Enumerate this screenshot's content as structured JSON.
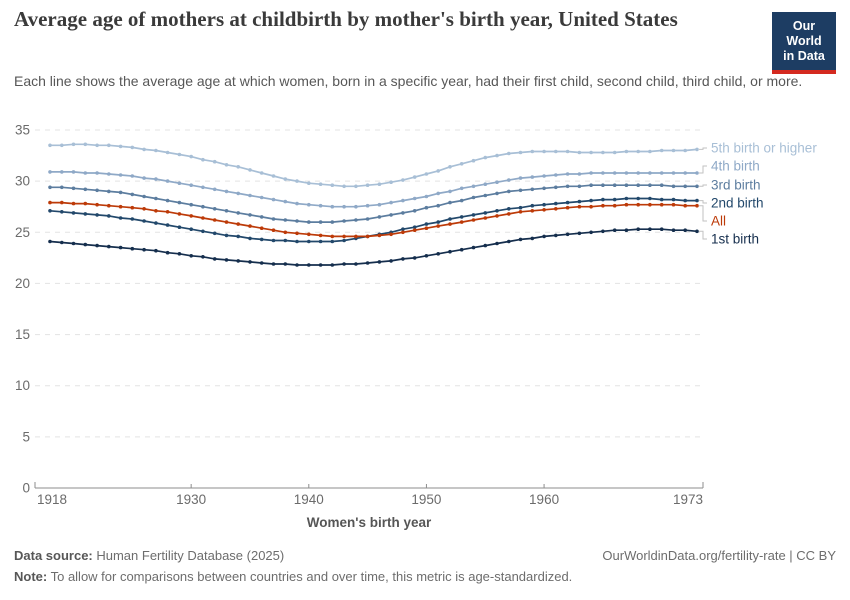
{
  "header": {
    "title": "Average age of mothers at childbirth by mother's birth year, United States",
    "subtitle": "Each line shows the average age at which women, born in a specific year, had their first child, second child, third child, or more.",
    "logo": {
      "line1": "Our World",
      "line2": "in Data",
      "bg": "#1d3d63",
      "accent": "#d42a20"
    }
  },
  "chart_data": {
    "type": "line",
    "title": "Average age of mothers at childbirth by mother's birth year, United States",
    "xlabel": "Women's birth year",
    "ylabel": "",
    "xlim": [
      1918,
      1973
    ],
    "ylim": [
      0,
      35
    ],
    "yticks": [
      0,
      5,
      10,
      15,
      20,
      25,
      30,
      35
    ],
    "xticks": [
      1918,
      1930,
      1940,
      1950,
      1960,
      1973
    ],
    "grid": "horizontal-dashed",
    "legend_position": "right",
    "x": [
      1918,
      1919,
      1920,
      1921,
      1922,
      1923,
      1924,
      1925,
      1926,
      1927,
      1928,
      1929,
      1930,
      1931,
      1932,
      1933,
      1934,
      1935,
      1936,
      1937,
      1938,
      1939,
      1940,
      1941,
      1942,
      1943,
      1944,
      1945,
      1946,
      1947,
      1948,
      1949,
      1950,
      1951,
      1952,
      1953,
      1954,
      1955,
      1956,
      1957,
      1958,
      1959,
      1960,
      1961,
      1962,
      1963,
      1964,
      1965,
      1966,
      1967,
      1968,
      1969,
      1970,
      1971,
      1972,
      1973
    ],
    "series": [
      {
        "name": "5th birth or higher",
        "color": "#a8bfd6",
        "values": [
          33.5,
          33.5,
          33.6,
          33.6,
          33.5,
          33.5,
          33.4,
          33.3,
          33.1,
          33.0,
          32.8,
          32.6,
          32.4,
          32.1,
          31.9,
          31.6,
          31.4,
          31.1,
          30.8,
          30.5,
          30.2,
          30.0,
          29.8,
          29.7,
          29.6,
          29.5,
          29.5,
          29.6,
          29.7,
          29.9,
          30.1,
          30.4,
          30.7,
          31.0,
          31.4,
          31.7,
          32.0,
          32.3,
          32.5,
          32.7,
          32.8,
          32.9,
          32.9,
          32.9,
          32.9,
          32.8,
          32.8,
          32.8,
          32.8,
          32.9,
          32.9,
          32.9,
          33.0,
          33.0,
          33.0,
          33.1
        ]
      },
      {
        "name": "4th birth",
        "color": "#8fa9c7",
        "values": [
          30.9,
          30.9,
          30.9,
          30.8,
          30.8,
          30.7,
          30.6,
          30.5,
          30.3,
          30.2,
          30.0,
          29.8,
          29.6,
          29.4,
          29.2,
          29.0,
          28.8,
          28.6,
          28.4,
          28.2,
          28.0,
          27.8,
          27.7,
          27.6,
          27.5,
          27.5,
          27.5,
          27.6,
          27.7,
          27.9,
          28.1,
          28.3,
          28.5,
          28.8,
          29.0,
          29.3,
          29.5,
          29.7,
          29.9,
          30.1,
          30.3,
          30.4,
          30.5,
          30.6,
          30.7,
          30.7,
          30.8,
          30.8,
          30.8,
          30.8,
          30.8,
          30.8,
          30.8,
          30.8,
          30.8,
          30.8
        ]
      },
      {
        "name": "3rd birth",
        "color": "#5c7d9f",
        "values": [
          29.4,
          29.4,
          29.3,
          29.2,
          29.1,
          29.0,
          28.9,
          28.7,
          28.5,
          28.3,
          28.1,
          27.9,
          27.7,
          27.5,
          27.3,
          27.1,
          26.9,
          26.7,
          26.5,
          26.3,
          26.2,
          26.1,
          26.0,
          26.0,
          26.0,
          26.1,
          26.2,
          26.3,
          26.5,
          26.7,
          26.9,
          27.1,
          27.4,
          27.6,
          27.9,
          28.1,
          28.4,
          28.6,
          28.8,
          29.0,
          29.1,
          29.2,
          29.3,
          29.4,
          29.5,
          29.5,
          29.6,
          29.6,
          29.6,
          29.6,
          29.6,
          29.6,
          29.6,
          29.5,
          29.5,
          29.5
        ]
      },
      {
        "name": "2nd birth",
        "color": "#22486b",
        "values": [
          27.1,
          27.0,
          26.9,
          26.8,
          26.7,
          26.6,
          26.4,
          26.3,
          26.1,
          25.9,
          25.7,
          25.5,
          25.3,
          25.1,
          24.9,
          24.7,
          24.6,
          24.4,
          24.3,
          24.2,
          24.2,
          24.1,
          24.1,
          24.1,
          24.1,
          24.2,
          24.4,
          24.6,
          24.8,
          25.0,
          25.3,
          25.5,
          25.8,
          26.0,
          26.3,
          26.5,
          26.7,
          26.9,
          27.1,
          27.3,
          27.4,
          27.6,
          27.7,
          27.8,
          27.9,
          28.0,
          28.1,
          28.2,
          28.2,
          28.3,
          28.3,
          28.3,
          28.2,
          28.2,
          28.1,
          28.1
        ]
      },
      {
        "name": "All",
        "color": "#bd3a08",
        "values": [
          27.9,
          27.9,
          27.8,
          27.8,
          27.7,
          27.6,
          27.5,
          27.4,
          27.3,
          27.1,
          27.0,
          26.8,
          26.6,
          26.4,
          26.2,
          26.0,
          25.8,
          25.6,
          25.4,
          25.2,
          25.0,
          24.9,
          24.8,
          24.7,
          24.6,
          24.6,
          24.6,
          24.6,
          24.7,
          24.8,
          25.0,
          25.2,
          25.4,
          25.6,
          25.8,
          26.0,
          26.2,
          26.4,
          26.6,
          26.8,
          27.0,
          27.1,
          27.2,
          27.3,
          27.4,
          27.5,
          27.5,
          27.6,
          27.6,
          27.7,
          27.7,
          27.7,
          27.7,
          27.7,
          27.6,
          27.6
        ]
      },
      {
        "name": "1st birth",
        "color": "#152e4d",
        "values": [
          24.1,
          24.0,
          23.9,
          23.8,
          23.7,
          23.6,
          23.5,
          23.4,
          23.3,
          23.2,
          23.0,
          22.9,
          22.7,
          22.6,
          22.4,
          22.3,
          22.2,
          22.1,
          22.0,
          21.9,
          21.9,
          21.8,
          21.8,
          21.8,
          21.8,
          21.9,
          21.9,
          22.0,
          22.1,
          22.2,
          22.4,
          22.5,
          22.7,
          22.9,
          23.1,
          23.3,
          23.5,
          23.7,
          23.9,
          24.1,
          24.3,
          24.4,
          24.6,
          24.7,
          24.8,
          24.9,
          25.0,
          25.1,
          25.2,
          25.2,
          25.3,
          25.3,
          25.3,
          25.2,
          25.2,
          25.1
        ]
      }
    ]
  },
  "footer": {
    "source_label": "Data source:",
    "source_value": " Human Fertility Database (2025)",
    "right_text": "OurWorldinData.org/fertility-rate | CC BY",
    "note_label": "Note:",
    "note_value": " To allow for comparisons between countries and over time, this metric is age-standardized."
  },
  "style_colors": {
    "grid": "#e3e3e3",
    "axis": "#8d8d8d",
    "tick_text": "#6b6b6b",
    "axis_title_text": "#565656",
    "connector": "#c2c2c2"
  }
}
